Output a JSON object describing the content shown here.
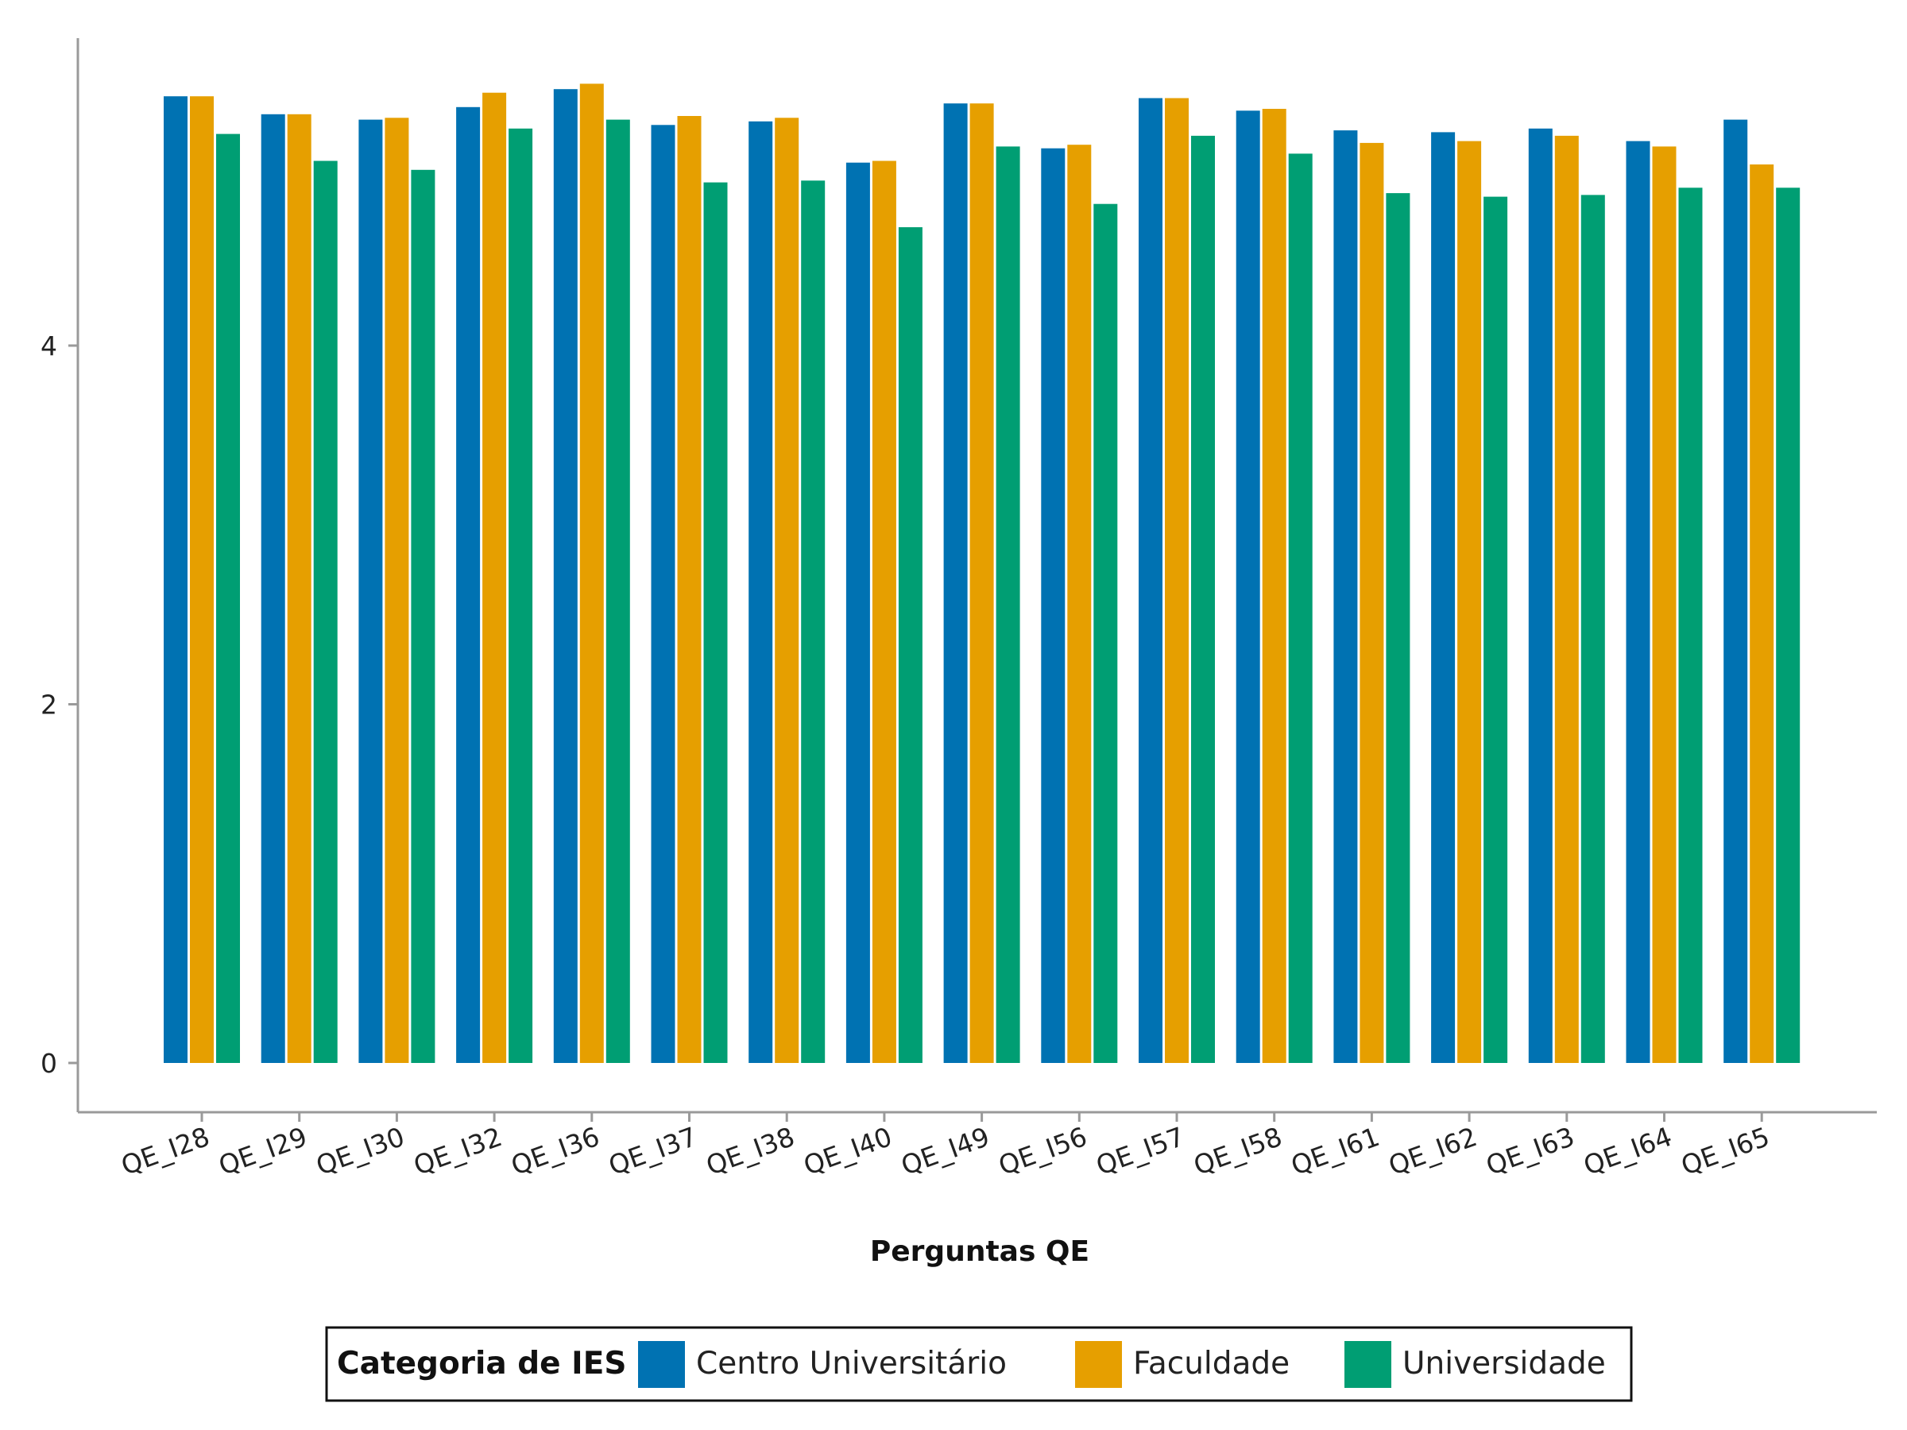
{
  "chart_data": {
    "type": "bar",
    "title": "",
    "xlabel": "Perguntas QE",
    "ylabel": "",
    "ylim": [
      -0.27,
      5.72
    ],
    "yticks": [
      0,
      2,
      4
    ],
    "grid": false,
    "legend_position": "bottom",
    "legend_title": "Categoria de IES",
    "categories": [
      "QE_I28",
      "QE_I29",
      "QE_I30",
      "QE_I32",
      "QE_I36",
      "QE_I37",
      "QE_I38",
      "QE_I40",
      "QE_I49",
      "QE_I56",
      "QE_I57",
      "QE_I58",
      "QE_I61",
      "QE_I62",
      "QE_I63",
      "QE_I64",
      "QE_I65"
    ],
    "series": [
      {
        "name": "Centro Universitário",
        "color": "#0072B2",
        "values": [
          5.39,
          5.29,
          5.26,
          5.33,
          5.43,
          5.23,
          5.25,
          5.02,
          5.35,
          5.1,
          5.38,
          5.31,
          5.2,
          5.19,
          5.21,
          5.14,
          5.26
        ]
      },
      {
        "name": "Faculdade",
        "color": "#E69F00",
        "values": [
          5.39,
          5.29,
          5.27,
          5.41,
          5.46,
          5.28,
          5.27,
          5.03,
          5.35,
          5.12,
          5.38,
          5.32,
          5.13,
          5.14,
          5.17,
          5.11,
          5.01
        ]
      },
      {
        "name": "Universidade",
        "color": "#009E73",
        "values": [
          5.18,
          5.03,
          4.98,
          5.21,
          5.26,
          4.91,
          4.92,
          4.66,
          5.11,
          4.79,
          5.17,
          5.07,
          4.85,
          4.83,
          4.84,
          4.88,
          4.88
        ]
      }
    ]
  }
}
